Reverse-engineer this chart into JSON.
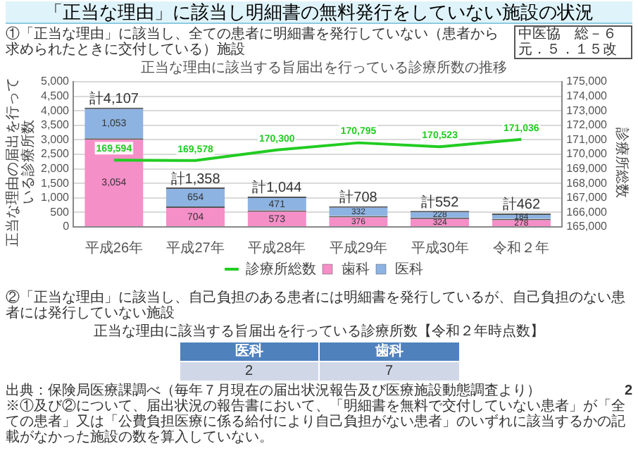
{
  "chart_data": [
    {
      "type": "bar",
      "title": "正当な理由に該当する旨届出を行っている診療所数の推移",
      "ylabel": "正当な理由の届出を行っている診療所数",
      "y2label": "診療所総数",
      "categories": [
        "平成26年",
        "平成27年",
        "平成28年",
        "平成29年",
        "平成30年",
        "令和２年"
      ],
      "stacked": true,
      "series": [
        {
          "name": "歯科",
          "color": "#f58fc8",
          "values": [
            3054,
            704,
            573,
            376,
            324,
            278
          ],
          "value_labels": [
            "3,054",
            "704",
            "573",
            "376",
            "324",
            "278"
          ]
        },
        {
          "name": "医科",
          "color": "#8db3e2",
          "values": [
            1053,
            654,
            471,
            332,
            228,
            184
          ],
          "value_labels": [
            "1,053",
            "654",
            "471",
            "332",
            "228",
            "184"
          ]
        },
        {
          "name": "診療所総数",
          "type": "line",
          "axis": "y2",
          "color": "#22cc22",
          "marker": "none",
          "values": [
            169594,
            169578,
            170300,
            170795,
            170523,
            171036
          ],
          "value_labels": [
            "169,594",
            "169,578",
            "170,300",
            "170,795",
            "170,523",
            "171,036"
          ]
        }
      ],
      "totals": [
        "計4,107",
        "計1,358",
        "計1,044",
        "計708",
        "計552",
        "計462"
      ],
      "ylim": [
        0,
        5000
      ],
      "yticks": [
        0,
        500,
        {
          "value": 1000,
          "label": "1,000"
        },
        {
          "value": 1500,
          "label": "1,500"
        },
        {
          "value": 2000,
          "label": "2,000"
        },
        {
          "value": 2500,
          "label": "2,500"
        },
        {
          "value": 3000,
          "label": "3,000"
        },
        {
          "value": 3500,
          "label": "3,500"
        },
        {
          "value": 4000,
          "label": "4,000"
        },
        {
          "value": 4500,
          "label": "4,500"
        },
        {
          "value": 5000,
          "label": "5,000"
        }
      ],
      "y2lim": [
        165000,
        175000
      ],
      "y2ticks": [
        {
          "value": 165000,
          "label": "165,000"
        },
        {
          "value": 166000,
          "label": "166,000"
        },
        {
          "value": 167000,
          "label": "167,000"
        },
        {
          "value": 168000,
          "label": "168,000"
        },
        {
          "value": 169000,
          "label": "169,000"
        },
        {
          "value": 170000,
          "label": "170,000"
        },
        {
          "value": 171000,
          "label": "171,000"
        },
        {
          "value": 172000,
          "label": "172,000"
        },
        {
          "value": 173000,
          "label": "173,000"
        },
        {
          "value": 174000,
          "label": "174,000"
        },
        {
          "value": 175000,
          "label": "175,000"
        }
      ],
      "grid": "y",
      "legend": "bottom",
      "annotations": [
        "「正当な理由」に該当し明細書の無料発行をしていない施設の状況",
        "①「正当な理由」に該当し、全ての患者に明細書を発行していない（患者から求められたときに交付している）施設",
        "中医協　総－６",
        "元．５．１５改"
      ]
    },
    {
      "type": "other",
      "title": "正当な理由に該当する旨届出を行っている診療所数【令和２年時点数】",
      "categories": [
        "医科",
        "歯科"
      ],
      "values": [
        2,
        7
      ],
      "data_labels": true,
      "annotations": [
        "②「正当な理由」に該当し、自己負担のある患者には明細書を発行しているが、自己負担のない患者には発行していない施設",
        "出典：保険局医療課調べ（毎年７月現在の届出状況報告及び医療施設動態調査より）",
        "※①及び②について、届出状況の報告書において、「明細書を無料で交付していない患者」が「全ての患者」又は「公費負担医療に係る給付により自己負担がない患者」のいずれに該当するかの記載がなかった施設の数を算入していない。",
        "2"
      ]
    }
  ]
}
